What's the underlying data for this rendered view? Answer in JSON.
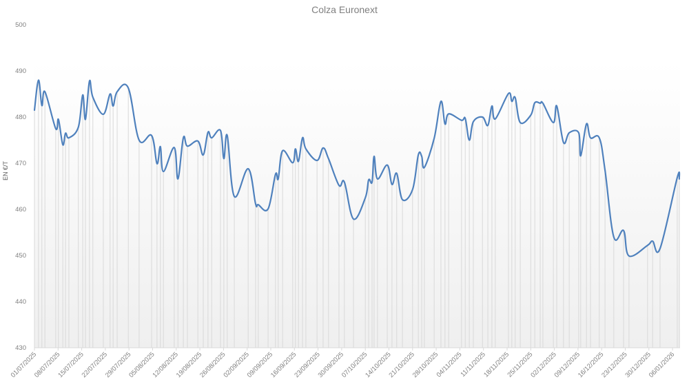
{
  "chart": {
    "title": "Colza Euronext",
    "ylabel": "EN €/T",
    "line_color": "#4f81bd",
    "droplines_color": "#d9d9d9"
  },
  "chart_data": {
    "type": "line",
    "title": "Colza Euronext",
    "xlabel": "",
    "ylabel": "EN €/T",
    "ylim": [
      430,
      500
    ],
    "yticks": [
      430,
      440,
      450,
      460,
      470,
      480,
      490,
      500
    ],
    "xlim": [
      "01/07/2025",
      "08/01/2026"
    ],
    "xtick_labels": [
      "01/07/2025",
      "08/07/2025",
      "15/07/2025",
      "22/07/2025",
      "29/07/2025",
      "05/08/2025",
      "12/08/2025",
      "19/08/2025",
      "26/08/2025",
      "02/09/2025",
      "09/09/2025",
      "16/09/2025",
      "23/09/2025",
      "30/09/2025",
      "07/10/2025",
      "14/10/2025",
      "21/10/2025",
      "28/10/2025",
      "04/11/2025",
      "11/11/2025",
      "18/11/2025",
      "25/11/2025",
      "02/12/2025",
      "09/12/2025",
      "16/12/2025",
      "23/12/2025",
      "30/12/2025",
      "06/01/2026"
    ],
    "grid": false,
    "legend": null,
    "drop_lines": true,
    "smoothed": true,
    "series": [
      {
        "name": "Colza Euronext",
        "points": [
          [
            0,
            481.5
          ],
          [
            1.2,
            488
          ],
          [
            2.2,
            482.5
          ],
          [
            3.1,
            485.5
          ],
          [
            6.3,
            477.5
          ],
          [
            7.1,
            479.5
          ],
          [
            8.4,
            474
          ],
          [
            9.2,
            476.5
          ],
          [
            10.2,
            475.5
          ],
          [
            13,
            477.8
          ],
          [
            14.3,
            484.8
          ],
          [
            15.1,
            479.5
          ],
          [
            16.3,
            487.8
          ],
          [
            17.3,
            484.3
          ],
          [
            20.4,
            480.6
          ],
          [
            22.4,
            485
          ],
          [
            23.3,
            482.4
          ],
          [
            24.5,
            485.5
          ],
          [
            27.8,
            486.3
          ],
          [
            31,
            475
          ],
          [
            34.7,
            476
          ],
          [
            36.3,
            469.9
          ],
          [
            37.3,
            473.6
          ],
          [
            38.2,
            468.2
          ],
          [
            41.4,
            473.4
          ],
          [
            42.5,
            466.6
          ],
          [
            44.1,
            475.5
          ],
          [
            45.3,
            473.7
          ],
          [
            48.4,
            474.8
          ],
          [
            50,
            471.8
          ],
          [
            51.4,
            476.7
          ],
          [
            52.5,
            475.5
          ],
          [
            55.1,
            477.1
          ],
          [
            56.1,
            471
          ],
          [
            57.1,
            476
          ],
          [
            59.2,
            462.8
          ],
          [
            63.3,
            468.8
          ],
          [
            65.5,
            461.2
          ],
          [
            66.3,
            461
          ],
          [
            69.2,
            460.1
          ],
          [
            71.4,
            467.6
          ],
          [
            72.2,
            466.6
          ],
          [
            73.5,
            472.7
          ],
          [
            76.5,
            470.1
          ],
          [
            77.3,
            473.1
          ],
          [
            78.2,
            470.4
          ],
          [
            79.4,
            475.5
          ],
          [
            80.4,
            473.1
          ],
          [
            83.7,
            470.6
          ],
          [
            85.5,
            473.3
          ],
          [
            87.1,
            471
          ],
          [
            90.2,
            465.2
          ],
          [
            91.8,
            465.9
          ],
          [
            94.5,
            457.9
          ],
          [
            98,
            462.5
          ],
          [
            99,
            466.4
          ],
          [
            100,
            465.9
          ],
          [
            100.6,
            471.5
          ],
          [
            101.6,
            466.6
          ],
          [
            104.5,
            469.6
          ],
          [
            105.9,
            465.4
          ],
          [
            107.3,
            467.8
          ],
          [
            109,
            462.1
          ],
          [
            112,
            464.3
          ],
          [
            113.7,
            471.8
          ],
          [
            114.7,
            471.5
          ],
          [
            115.5,
            469.1
          ],
          [
            118.4,
            475.4
          ],
          [
            120.4,
            483.4
          ],
          [
            121.6,
            478.5
          ],
          [
            122.7,
            480.7
          ],
          [
            126.5,
            479.3
          ],
          [
            127.6,
            479.7
          ],
          [
            128.8,
            475
          ],
          [
            130,
            479
          ],
          [
            132.7,
            480
          ],
          [
            134.3,
            478.2
          ],
          [
            135.5,
            482.4
          ],
          [
            136.5,
            479.6
          ],
          [
            140.4,
            485.1
          ],
          [
            141.4,
            483.4
          ],
          [
            142.4,
            484.2
          ],
          [
            143.9,
            478.8
          ],
          [
            147,
            480.4
          ],
          [
            148.2,
            483.1
          ],
          [
            149.8,
            483
          ],
          [
            150.6,
            483
          ],
          [
            153.7,
            478.8
          ],
          [
            154.7,
            482.4
          ],
          [
            156.7,
            474.5
          ],
          [
            158.4,
            476.6
          ],
          [
            161.2,
            476.6
          ],
          [
            161.8,
            471.6
          ],
          [
            163.5,
            478.5
          ],
          [
            164.7,
            475.5
          ],
          [
            167.3,
            475.5
          ],
          [
            169,
            468.5
          ],
          [
            171.6,
            454
          ],
          [
            174.5,
            455.4
          ],
          [
            176.1,
            449.9
          ],
          [
            181.6,
            452.2
          ],
          [
            183.1,
            453.1
          ],
          [
            185.3,
            451.5
          ],
          [
            190.4,
            466.9
          ],
          [
            191,
            466.6
          ]
        ]
      }
    ]
  }
}
